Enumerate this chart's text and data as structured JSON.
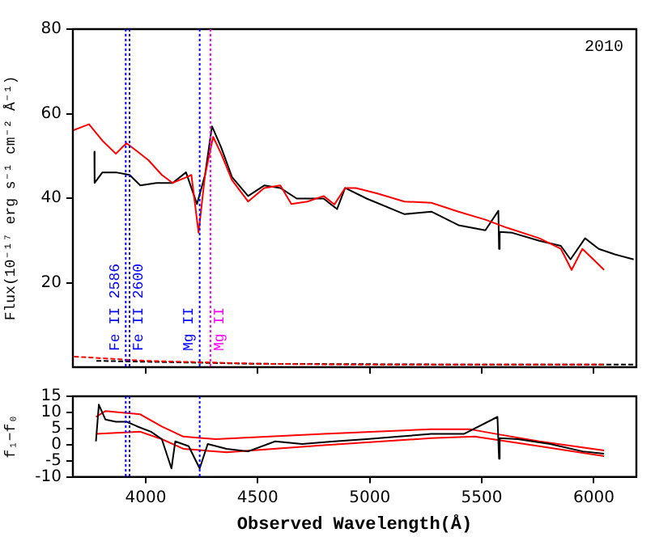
{
  "chart_data": [
    {
      "type": "line",
      "ylabel": "Flux(10⁻¹⁷ erg s⁻¹ cm⁻² Å⁻¹)",
      "xlim": [
        3675,
        6190
      ],
      "xticks": [
        4000,
        4500,
        5000,
        5500,
        6000
      ],
      "ylim": [
        0,
        80
      ],
      "yticks": [
        20,
        40,
        60,
        80
      ],
      "tick_labels": "y",
      "marker": "none",
      "annotations": [
        "2010"
      ],
      "series": [
        {
          "color": "#ff0000",
          "x": [
            3675,
            3747,
            3807,
            3867,
            3914,
            3964,
            4012,
            4072,
            4120,
            4180,
            4204,
            4236,
            4265,
            4301,
            4337,
            4385,
            4457,
            4529,
            4601,
            4650,
            4722,
            4794,
            4842,
            4890,
            4938,
            5034,
            5155,
            5275,
            5396,
            5516,
            5612,
            5757,
            5853,
            5901,
            5949,
            5998,
            6046
          ],
          "values": [
            56,
            57.5,
            53.6,
            50.5,
            53,
            51,
            49,
            45.5,
            43.6,
            44.9,
            45.5,
            31.8,
            45.5,
            54.5,
            50.5,
            44.3,
            39.2,
            42.4,
            43,
            38.6,
            39.2,
            40.5,
            38.5,
            42.4,
            42.4,
            41.1,
            39.2,
            38.9,
            36.8,
            34.9,
            33,
            30.5,
            28,
            23,
            28,
            25.5,
            23
          ]
        },
        {
          "color": "#000000",
          "x": [
            3771,
            3772,
            3807,
            3867,
            3928,
            3976,
            4048,
            4120,
            4180,
            4229,
            4265,
            4296,
            4337,
            4385,
            4457,
            4529,
            4601,
            4674,
            4794,
            4854,
            4890,
            4986,
            5155,
            5275,
            5396,
            5516,
            5574,
            5577,
            5580,
            5636,
            5757,
            5853,
            5896,
            5961,
            6022,
            6094,
            6178
          ],
          "values": [
            51,
            43.6,
            46.1,
            46.1,
            45.5,
            43,
            43.6,
            43.6,
            46.1,
            38.6,
            45.5,
            57,
            52,
            45,
            40.5,
            43,
            42.4,
            39.9,
            39.9,
            37.4,
            42.4,
            39.9,
            36.2,
            36.8,
            33.6,
            32.4,
            37,
            28,
            32,
            31.8,
            29.9,
            28.7,
            25.5,
            30.5,
            28,
            26.7,
            25.5
          ]
        },
        {
          "color": "#ff0000",
          "line_style": "dashed",
          "x": [
            3680,
            4000,
            4500,
            5000,
            6050
          ],
          "values": [
            2.5,
            1.5,
            0.8,
            0.6,
            0.6
          ]
        },
        {
          "color": "#000000",
          "line_style": "dashed",
          "x": [
            3780,
            4500,
            5500,
            6190
          ],
          "values": [
            1.5,
            0.8,
            0.6,
            0.6
          ]
        }
      ],
      "ref_lines": [
        {
          "axis": "x",
          "value": 3911,
          "label": "Fe II 2586",
          "color": "#0000ff",
          "line_style": "dotted"
        },
        {
          "axis": "x",
          "value": 3928,
          "label": "Fe II 2600",
          "color": "#0000ff",
          "line_style": "dotted"
        },
        {
          "axis": "x",
          "value": 4241,
          "label": "Mg II",
          "color": "#0000ff",
          "line_style": "dotted"
        },
        {
          "axis": "x",
          "value": 4289,
          "label": "Mg II",
          "color": "#ff00ff",
          "line_style": "dotted"
        }
      ]
    },
    {
      "type": "line",
      "xlabel": "Observed Wavelength(Å)",
      "ylabel": "f₁−f₀",
      "xlim": [
        3675,
        6190
      ],
      "xticks": [
        4000,
        4500,
        5000,
        5500,
        6000
      ],
      "ylim": [
        -10,
        15
      ],
      "yticks": [
        -10,
        -5,
        0,
        5,
        10,
        15
      ],
      "marker": "none",
      "series": [
        {
          "color": "#000000",
          "x": [
            3778,
            3791,
            3820,
            3867,
            3915,
            3964,
            4024,
            4072,
            4115,
            4132,
            4192,
            4241,
            4277,
            4361,
            4457,
            4578,
            4698,
            4842,
            4986,
            5131,
            5275,
            5420,
            5570,
            5577,
            5580,
            5661,
            5805,
            5950,
            6046
          ],
          "values": [
            1,
            12.4,
            7.8,
            7.1,
            7.1,
            5.6,
            4,
            1.7,
            -7.4,
            1,
            -0.5,
            -7.4,
            0.2,
            -1.3,
            -2.1,
            1,
            0.2,
            1,
            1.7,
            2.5,
            3.3,
            3.3,
            8.6,
            -4.4,
            2,
            1.7,
            0.2,
            -2.1,
            -2.8
          ]
        },
        {
          "color": "#ff0000",
          "x": [
            3778,
            3820,
            3976,
            4072,
            4168,
            4313,
            4794,
            5275,
            5444,
            5565,
            5757,
            6046
          ],
          "values": [
            8.6,
            10.4,
            9.4,
            5.6,
            2.5,
            1.7,
            3.3,
            4.8,
            4.8,
            3.3,
            1,
            -1.8
          ]
        },
        {
          "color": "#ff0000",
          "x": [
            3778,
            3976,
            4072,
            4168,
            4361,
            4794,
            5275,
            5468,
            5757,
            6046
          ],
          "values": [
            3.3,
            4,
            1.7,
            -1.3,
            -2.4,
            -0.2,
            2,
            2.5,
            -0.5,
            -3.6
          ]
        }
      ],
      "ref_lines": [
        {
          "axis": "x",
          "value": 3911,
          "color": "#0000ff",
          "line_style": "dotted"
        },
        {
          "axis": "x",
          "value": 3928,
          "color": "#0000ff",
          "line_style": "dotted"
        },
        {
          "axis": "x",
          "value": 4241,
          "color": "#0000ff",
          "line_style": "dotted"
        }
      ]
    }
  ]
}
